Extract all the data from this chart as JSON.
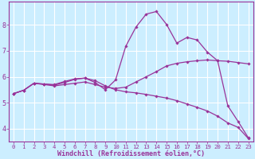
{
  "xlabel": "Windchill (Refroidissement éolien,°C)",
  "background_color": "#cceeff",
  "grid_color": "#ffffff",
  "line_color": "#993399",
  "xlim": [
    -0.5,
    23.5
  ],
  "ylim": [
    3.5,
    8.9
  ],
  "xticks": [
    0,
    1,
    2,
    3,
    4,
    5,
    6,
    7,
    8,
    9,
    10,
    11,
    12,
    13,
    14,
    15,
    16,
    17,
    18,
    19,
    20,
    21,
    22,
    23
  ],
  "yticks": [
    4,
    5,
    6,
    7,
    8
  ],
  "series": [
    {
      "x": [
        0,
        1,
        2,
        3,
        4,
        5,
        6,
        7,
        8,
        9,
        10,
        11,
        12,
        13,
        14,
        15,
        16,
        17,
        18,
        19,
        20,
        21,
        22,
        23
      ],
      "y": [
        5.35,
        5.48,
        5.75,
        5.7,
        5.65,
        5.7,
        5.75,
        5.8,
        5.7,
        5.6,
        5.55,
        5.6,
        5.8,
        6.0,
        6.2,
        6.42,
        6.52,
        6.58,
        6.62,
        6.65,
        6.62,
        6.6,
        6.55,
        6.5
      ]
    },
    {
      "x": [
        0,
        1,
        2,
        3,
        4,
        5,
        6,
        7,
        8,
        9,
        10,
        11,
        12,
        13,
        14,
        15,
        16,
        17,
        18,
        19,
        20,
        21,
        22,
        23
      ],
      "y": [
        5.35,
        5.48,
        5.75,
        5.72,
        5.68,
        5.78,
        5.9,
        5.95,
        5.85,
        5.65,
        5.5,
        5.42,
        5.38,
        5.32,
        5.25,
        5.18,
        5.08,
        4.95,
        4.82,
        4.68,
        4.48,
        4.22,
        4.05,
        3.62
      ]
    },
    {
      "x": [
        0,
        1,
        2,
        3,
        4,
        5,
        6,
        7,
        8,
        9,
        10,
        11,
        12,
        13,
        14,
        15,
        16,
        17,
        18,
        19,
        20,
        21,
        22,
        23
      ],
      "y": [
        5.35,
        5.48,
        5.75,
        5.72,
        5.7,
        5.82,
        5.92,
        5.95,
        5.78,
        5.5,
        5.88,
        7.18,
        7.92,
        8.42,
        8.52,
        8.02,
        7.3,
        7.52,
        7.42,
        6.95,
        6.62,
        4.88,
        4.28,
        3.65
      ]
    }
  ]
}
